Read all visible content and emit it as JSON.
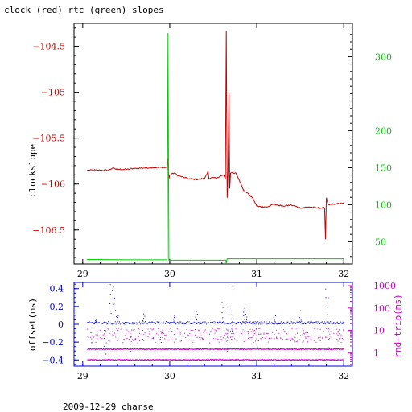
{
  "page": {
    "footer": "2009-12-29 charse"
  },
  "colors": {
    "clock": "#cc0000",
    "rtc": "#00cc00",
    "offset": "#0000cc",
    "rndtrip": "#cc00cc",
    "axis": "#000000"
  },
  "chart_data": [
    {
      "type": "line",
      "title": "clock (red) rtc (green) slopes",
      "xlabel": "",
      "ylabel": "clockslope",
      "xlim": [
        28.9,
        32.1
      ],
      "ylim": [
        -106.87,
        -104.25
      ],
      "x_ticks": [
        29,
        30,
        31,
        32
      ],
      "y_ticks": [
        -104.5,
        -105,
        -105.5,
        -106,
        -106.5
      ],
      "y_tick_labels": [
        "−104.5",
        "−105",
        "−105.5",
        "−106",
        "−106.5"
      ],
      "y2_label": "",
      "y2lim": [
        20,
        345
      ],
      "y2_ticks": [
        50,
        100,
        150,
        200,
        300
      ],
      "grid": false,
      "series": [
        {
          "name": "clock",
          "axis": "left",
          "points": [
            [
              29.05,
              -105.85
            ],
            [
              29.2,
              -105.85
            ],
            [
              29.3,
              -105.85
            ],
            [
              29.35,
              -105.82
            ],
            [
              29.38,
              -105.84
            ],
            [
              29.5,
              -105.84
            ],
            [
              29.6,
              -105.83
            ],
            [
              29.8,
              -105.82
            ],
            [
              29.97,
              -105.82
            ],
            [
              29.98,
              -105.72
            ],
            [
              29.99,
              -105.95
            ],
            [
              30.0,
              -105.9
            ],
            [
              30.05,
              -105.88
            ],
            [
              30.1,
              -105.91
            ],
            [
              30.2,
              -105.94
            ],
            [
              30.3,
              -105.95
            ],
            [
              30.4,
              -105.94
            ],
            [
              30.44,
              -105.86
            ],
            [
              30.45,
              -105.94
            ],
            [
              30.55,
              -105.93
            ],
            [
              30.62,
              -105.9
            ],
            [
              30.64,
              -105.95
            ],
            [
              30.65,
              -104.33
            ],
            [
              30.66,
              -106.15
            ],
            [
              30.67,
              -105.86
            ],
            [
              30.68,
              -105.01
            ],
            [
              30.69,
              -106.05
            ],
            [
              30.7,
              -105.88
            ],
            [
              30.76,
              -105.88
            ],
            [
              30.8,
              -105.96
            ],
            [
              30.85,
              -106.07
            ],
            [
              30.9,
              -106.1
            ],
            [
              30.95,
              -106.15
            ],
            [
              31.0,
              -106.24
            ],
            [
              31.1,
              -106.25
            ],
            [
              31.2,
              -106.22
            ],
            [
              31.3,
              -106.24
            ],
            [
              31.4,
              -106.23
            ],
            [
              31.5,
              -106.26
            ],
            [
              31.6,
              -106.25
            ],
            [
              31.7,
              -106.26
            ],
            [
              31.78,
              -106.26
            ],
            [
              31.79,
              -106.6
            ],
            [
              31.8,
              -106.15
            ],
            [
              31.82,
              -106.22
            ],
            [
              31.9,
              -106.22
            ],
            [
              32.0,
              -106.21
            ]
          ]
        },
        {
          "name": "rtc",
          "axis": "right",
          "points": [
            [
              29.05,
              26
            ],
            [
              29.5,
              25.5
            ],
            [
              29.97,
              25.5
            ],
            [
              29.98,
              332
            ],
            [
              29.99,
              25
            ],
            [
              30.3,
              25
            ],
            [
              30.6,
              25
            ],
            [
              30.645,
              25
            ],
            [
              30.65,
              21
            ],
            [
              30.66,
              27
            ],
            [
              31.0,
              27
            ],
            [
              31.5,
              27
            ],
            [
              32.0,
              27
            ]
          ]
        }
      ]
    },
    {
      "type": "scatter",
      "title": "",
      "xlabel": "",
      "ylabel": "offset(ms)",
      "xlim": [
        28.9,
        32.1
      ],
      "ylim": [
        -0.47,
        0.47
      ],
      "x_ticks": [
        29,
        30,
        31,
        32
      ],
      "y_ticks": [
        0.4,
        0.2,
        0,
        -0.2,
        -0.4
      ],
      "y_tick_labels": [
        "0.4",
        "0.2",
        "0",
        "−0.2",
        "−0.4"
      ],
      "y2_label": "rnd−trip(ms)",
      "y2_scale": "log",
      "y2lim": [
        0.25,
        1400
      ],
      "y2_ticks": [
        1,
        10,
        100,
        1000
      ],
      "y2_tick_labels": [
        "1",
        "10",
        "100",
        "1000"
      ],
      "grid": false,
      "series": [
        {
          "name": "offset",
          "axis": "left",
          "baseline": 0.02,
          "spread": 0.03,
          "spikes": [
            [
              29.1,
              -0.2
            ],
            [
              29.15,
              0.05
            ],
            [
              29.25,
              -0.33
            ],
            [
              29.32,
              0.45
            ],
            [
              29.35,
              0.38
            ],
            [
              29.37,
              0.3
            ],
            [
              29.4,
              0.1
            ],
            [
              29.55,
              -0.3
            ],
            [
              29.7,
              0.12
            ],
            [
              29.9,
              -0.2
            ],
            [
              30.05,
              0.1
            ],
            [
              30.3,
              0.15
            ],
            [
              30.6,
              0.25
            ],
            [
              30.65,
              -0.3
            ],
            [
              30.7,
              0.2
            ],
            [
              30.72,
              -0.1
            ],
            [
              30.85,
              0.18
            ],
            [
              30.87,
              0.15
            ],
            [
              31.0,
              -0.25
            ],
            [
              31.2,
              0.1
            ],
            [
              31.5,
              0.08
            ],
            [
              31.8,
              0.4
            ],
            [
              31.82,
              -0.35
            ],
            [
              32.0,
              0.02
            ]
          ]
        },
        {
          "name": "rnd-trip",
          "axis": "right",
          "bands": [
            0.5,
            1.5,
            4,
            6,
            10
          ],
          "spikes": [
            [
              29.3,
              1000
            ],
            [
              29.35,
              900
            ],
            [
              30.7,
              1000
            ],
            [
              30.72,
              900
            ],
            [
              31.5,
              80
            ],
            [
              31.82,
              300
            ]
          ]
        }
      ]
    }
  ]
}
